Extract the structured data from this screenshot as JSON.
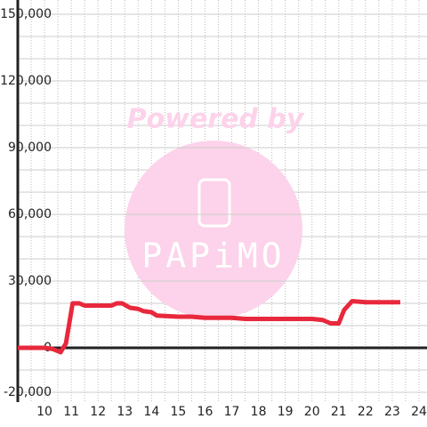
{
  "chart_data": {
    "type": "line",
    "x": [
      9,
      10,
      10.3,
      10.6,
      10.8,
      11.05,
      11.3,
      11.5,
      12.5,
      12.7,
      12.9,
      13.2,
      13.5,
      13.7,
      14,
      14.2,
      15,
      15.5,
      16,
      17,
      17.5,
      18,
      20,
      20.4,
      20.7,
      21,
      21.2,
      21.5,
      22,
      23.3
    ],
    "series": [
      {
        "color": "#e8283c",
        "values": [
          0,
          0,
          -500,
          -2000,
          2000,
          20000,
          20000,
          19000,
          19000,
          20000,
          20000,
          18000,
          17500,
          16500,
          16000,
          14500,
          14000,
          14000,
          13500,
          13500,
          13000,
          13000,
          13000,
          12500,
          11000,
          11000,
          17000,
          21000,
          20500,
          20500
        ]
      }
    ],
    "xlim": [
      9,
      24.3
    ],
    "ylim": [
      -20000,
      150000
    ],
    "xticks": [
      10,
      11,
      12,
      13,
      14,
      15,
      16,
      17,
      18,
      19,
      20,
      21,
      22,
      23,
      24
    ],
    "yticks": [
      {
        "value": 150000,
        "label": "150,000"
      },
      {
        "value": 120000,
        "label": "120,000"
      },
      {
        "value": 90000,
        "label": "90,000"
      },
      {
        "value": 60000,
        "label": "60,000"
      },
      {
        "value": 30000,
        "label": "30,000"
      },
      0,
      {
        "value": -20000,
        "label": "-20,000"
      }
    ],
    "y_minor_ticks": [
      -10000,
      10000,
      20000,
      40000,
      50000,
      70000,
      80000,
      100000,
      110000,
      130000,
      140000
    ],
    "x_minor_ticks": [
      9.5,
      10.5,
      11.5,
      12.5,
      13.5,
      14.5,
      15.5,
      16.5,
      17.5,
      18.5,
      19.5,
      20.5,
      21.5,
      22.5,
      23.5
    ],
    "grid": true,
    "annotations": [
      "Powered by",
      "PAPiMO"
    ]
  }
}
